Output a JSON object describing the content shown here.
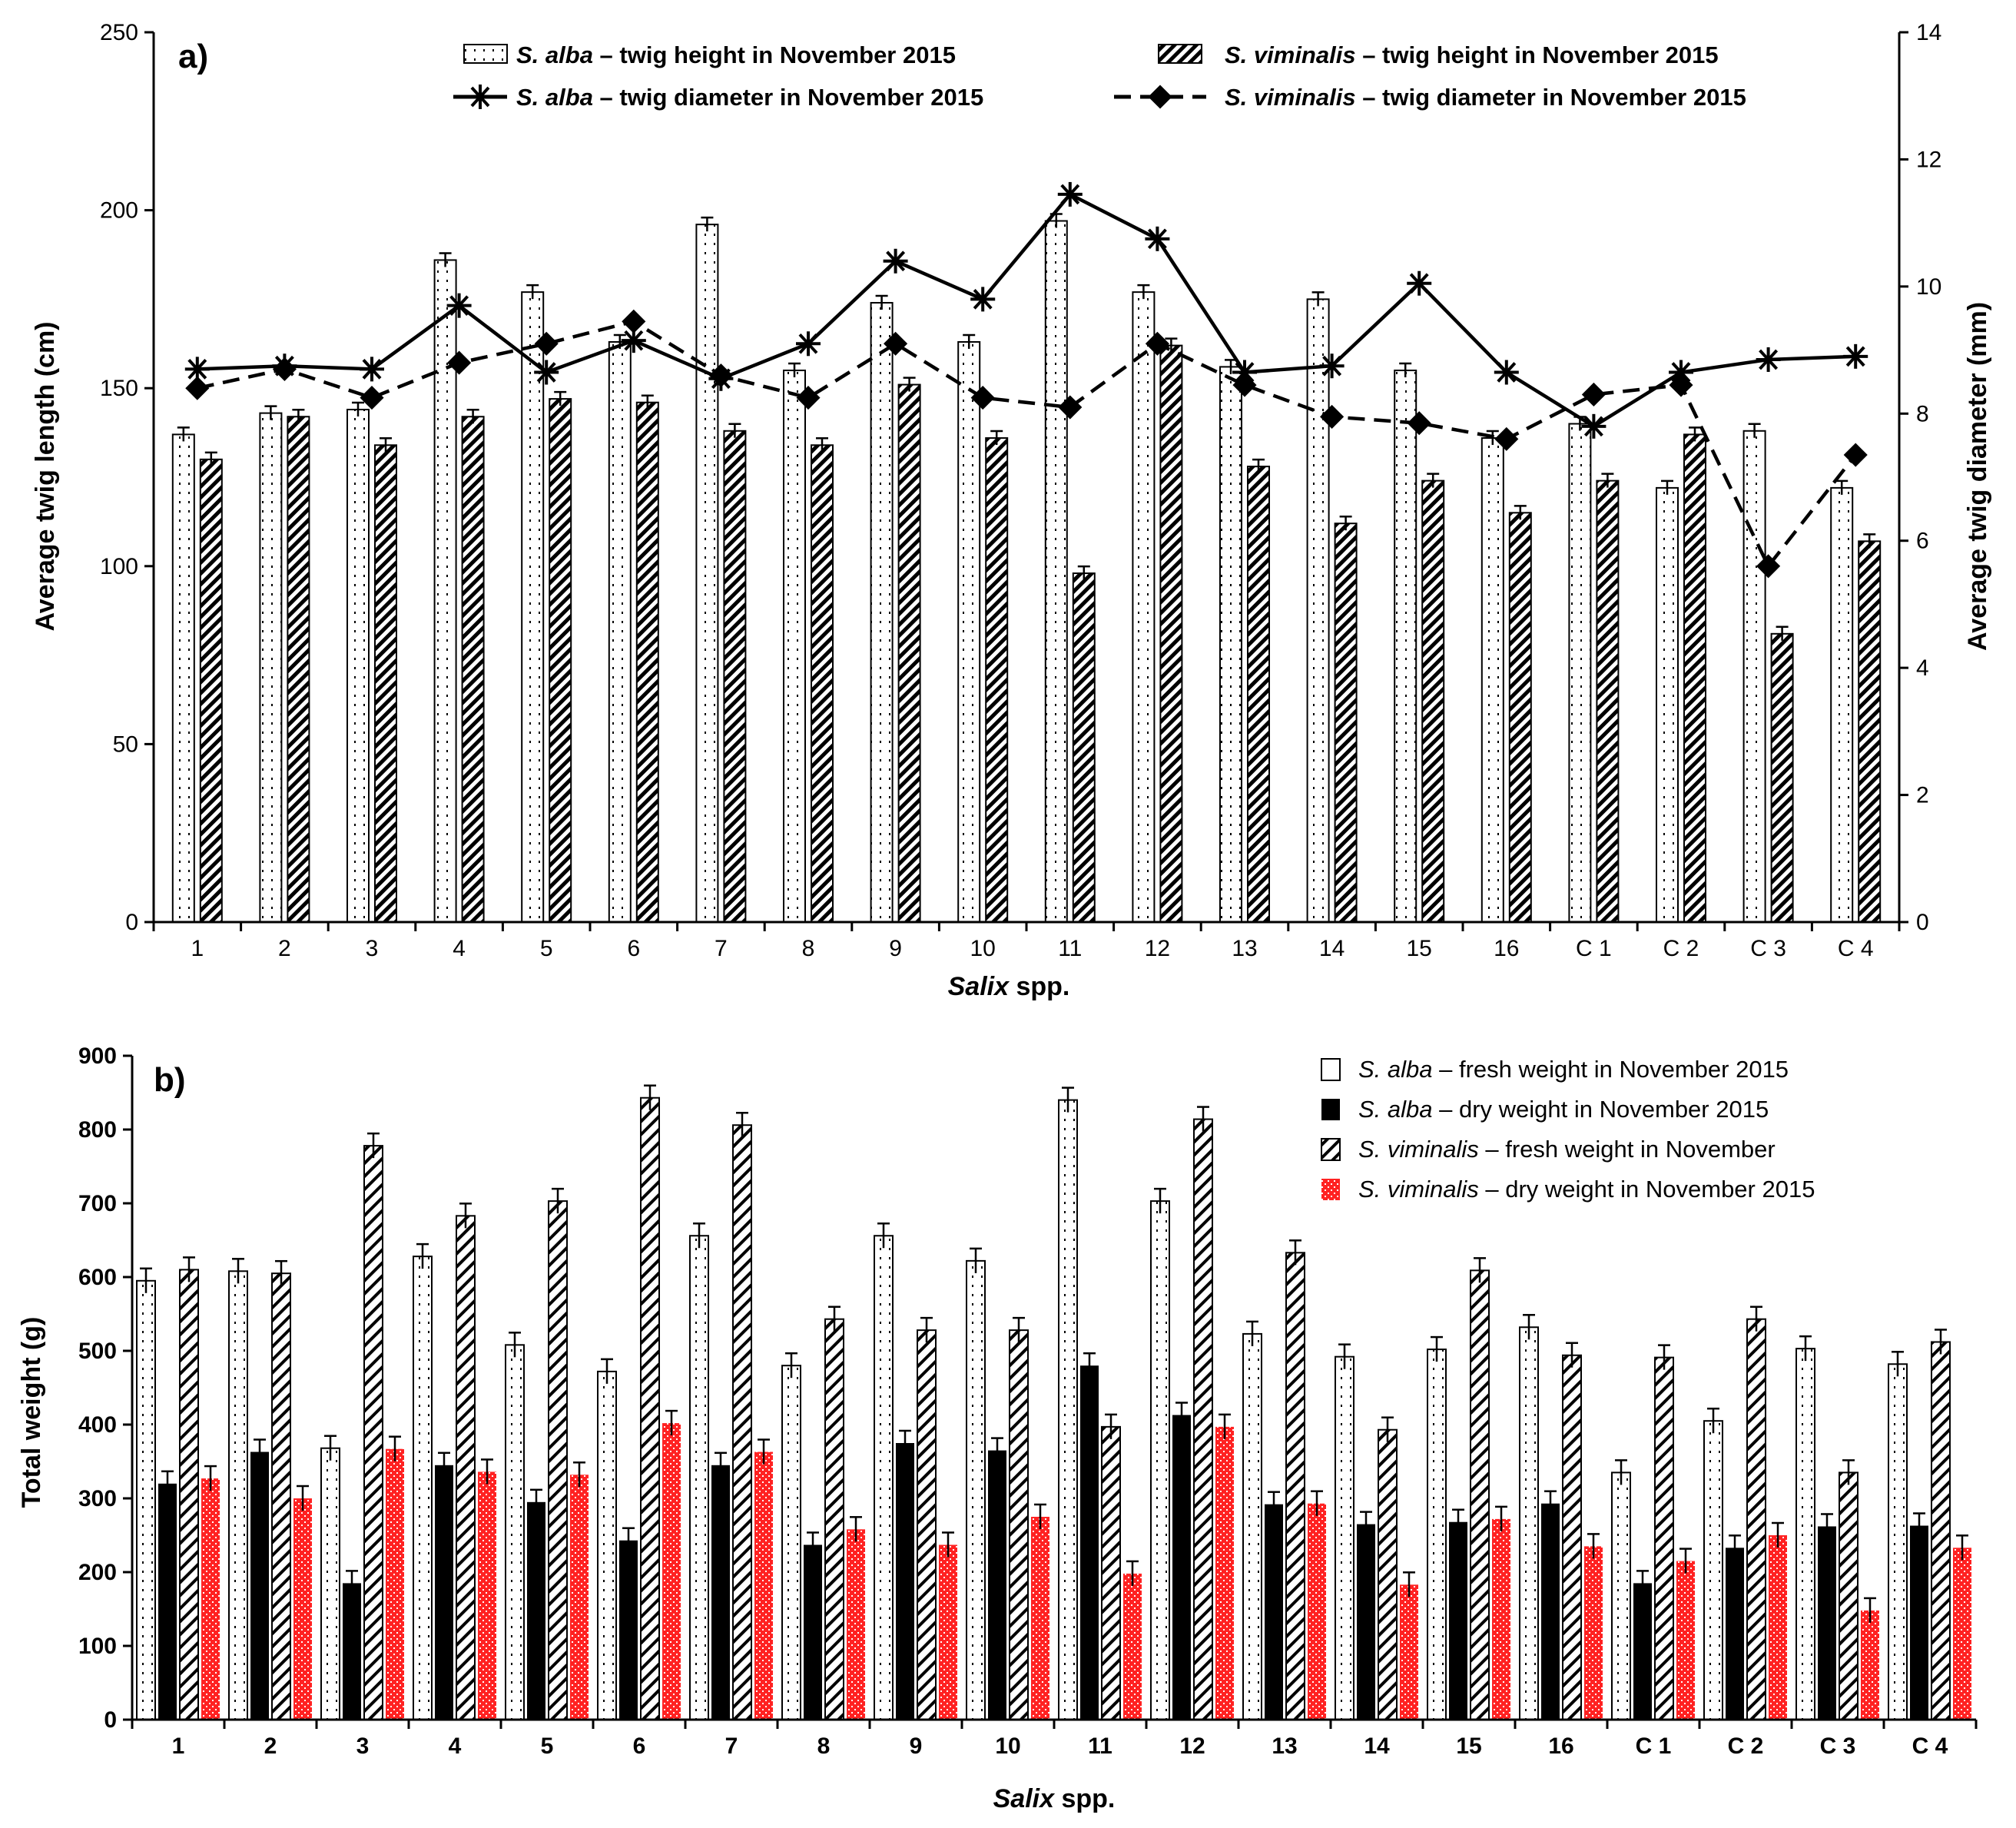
{
  "chart_data": [
    {
      "type": "bar",
      "panel_label": "a)",
      "categories": [
        "1",
        "2",
        "3",
        "4",
        "5",
        "6",
        "7",
        "8",
        "9",
        "10",
        "11",
        "12",
        "13",
        "14",
        "15",
        "16",
        "C 1",
        "C 2",
        "C 3",
        "C 4"
      ],
      "xlabel_italic": "Salix",
      "xlabel_rest": " spp.",
      "ylabel": "Average twig length (cm)",
      "ylabel_right": "Average twig diameter (mm)",
      "ylim": [
        0,
        250
      ],
      "yticks": [
        "0",
        "50",
        "100",
        "150",
        "200",
        "250"
      ],
      "ylim_right": [
        0,
        14
      ],
      "yticks_right": [
        "0",
        "2",
        "4",
        "6",
        "8",
        "10",
        "12",
        "14"
      ],
      "series": [
        {
          "name": "S. alba – twig height in November 2015",
          "name_italic": "S. alba",
          "name_rest": " – twig height in November 2015",
          "kind": "bar",
          "axis": "left",
          "style": "dotted-white",
          "values": [
            137,
            143,
            144,
            186,
            177,
            163,
            196,
            155,
            174,
            163,
            197,
            177,
            156,
            175,
            155,
            136,
            140,
            122,
            138,
            122
          ]
        },
        {
          "name": "S. viminalis – twig height in November 2015",
          "name_italic": "S. viminalis",
          "name_rest": " – twig height in November 2015",
          "kind": "bar",
          "axis": "left",
          "style": "hatched",
          "values": [
            130,
            142,
            134,
            142,
            147,
            146,
            138,
            134,
            151,
            136,
            98,
            162,
            128,
            112,
            124,
            115,
            124,
            137,
            81,
            107
          ]
        },
        {
          "name": "S. alba – twig diameter in November 2015",
          "name_italic": "S. alba",
          "name_rest": " – twig diameter in November 2015",
          "kind": "line",
          "axis": "right",
          "style": "solid-star",
          "values": [
            8.7,
            8.75,
            8.7,
            9.7,
            8.65,
            9.15,
            8.55,
            9.1,
            10.4,
            9.8,
            11.45,
            10.75,
            8.65,
            8.75,
            10.05,
            8.65,
            7.8,
            8.65,
            8.85,
            8.9
          ]
        },
        {
          "name": "S. viminalis – twig diameter in November 2015",
          "name_italic": "S. viminalis",
          "name_rest": " – twig diameter in November 2015",
          "kind": "line",
          "axis": "right",
          "style": "dashed-diamond",
          "values": [
            8.4,
            8.7,
            8.25,
            8.8,
            9.1,
            9.45,
            8.6,
            8.25,
            9.1,
            8.25,
            8.1,
            9.1,
            8.45,
            7.95,
            7.85,
            7.6,
            8.3,
            8.45,
            5.6,
            7.35
          ]
        }
      ]
    },
    {
      "type": "bar",
      "panel_label": "b)",
      "categories": [
        "1",
        "2",
        "3",
        "4",
        "5",
        "6",
        "7",
        "8",
        "9",
        "10",
        "11",
        "12",
        "13",
        "14",
        "15",
        "16",
        "C 1",
        "C 2",
        "C 3",
        "C 4"
      ],
      "xlabel_italic": "Salix",
      "xlabel_rest": " spp.",
      "ylabel": "Total weight (g)",
      "ylim": [
        0,
        900
      ],
      "yticks": [
        "0",
        "100",
        "200",
        "300",
        "400",
        "500",
        "600",
        "700",
        "800",
        "900"
      ],
      "series": [
        {
          "name": "S. alba – fresh weight in November 2015",
          "name_italic": "S. alba",
          "name_rest": " – fresh weight in November 2015",
          "style": "dotted-white",
          "values": [
            595,
            608,
            368,
            628,
            508,
            472,
            656,
            480,
            656,
            622,
            840,
            703,
            523,
            492,
            502,
            532,
            335,
            405,
            503,
            482
          ]
        },
        {
          "name": "S. alba – dry weight in November 2015",
          "name_italic": "S. alba",
          "name_rest": " – dry weight in November 2015",
          "style": "black",
          "values": [
            320,
            363,
            185,
            345,
            295,
            243,
            345,
            237,
            375,
            365,
            480,
            413,
            292,
            265,
            268,
            293,
            185,
            233,
            262,
            263
          ]
        },
        {
          "name": "S. viminalis – fresh weight in November",
          "name_italic": "S. viminalis",
          "name_rest": " – fresh weight in November",
          "style": "half-hatched",
          "values": [
            610,
            605,
            778,
            683,
            703,
            843,
            806,
            543,
            528,
            528,
            397,
            814,
            633,
            393,
            609,
            494,
            491,
            543,
            335,
            512
          ]
        },
        {
          "name": "S. viminalis – dry weight in November 2015",
          "name_italic": "S. viminalis",
          "name_rest": " – dry weight in November 2015",
          "style": "red-checker",
          "values": [
            327,
            300,
            367,
            336,
            332,
            402,
            363,
            258,
            237,
            275,
            198,
            397,
            293,
            183,
            272,
            235,
            215,
            250,
            148,
            233
          ]
        }
      ]
    }
  ],
  "colors": {
    "axis": "#000000",
    "red": "#ff2222",
    "black": "#000000",
    "white": "#ffffff"
  }
}
